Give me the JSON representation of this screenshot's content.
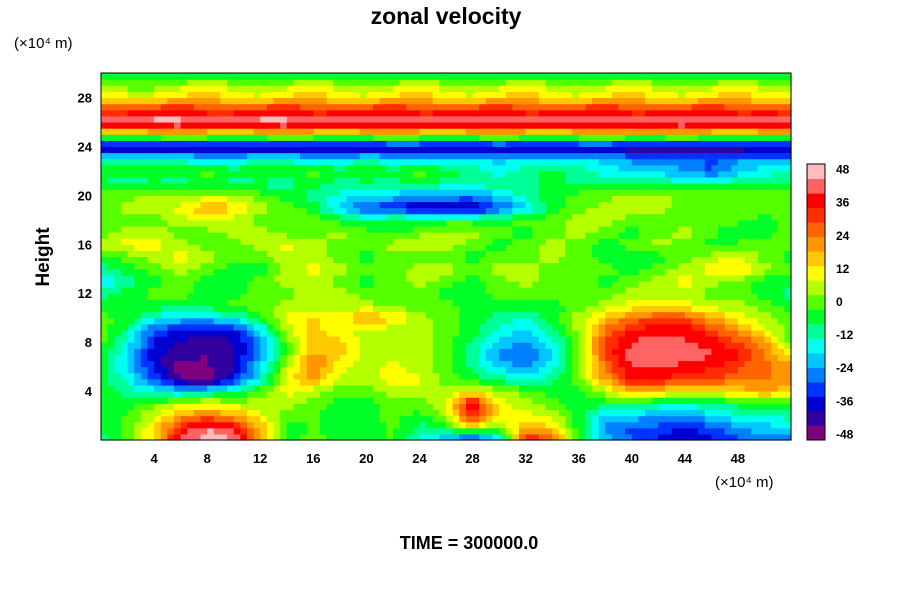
{
  "chart_data": {
    "type": "heatmap",
    "title": "zonal velocity",
    "xlabel": "",
    "ylabel": "Height",
    "x_unit": "(×10⁴ m)",
    "y_unit": "(×10⁴ m)",
    "footer": "TIME = 300000.0",
    "xlim": [
      0,
      52
    ],
    "ylim": [
      0,
      30
    ],
    "x_ticks": [
      4,
      8,
      12,
      16,
      20,
      24,
      28,
      32,
      36,
      40,
      44,
      48
    ],
    "y_ticks": [
      4,
      8,
      12,
      16,
      20,
      24,
      28
    ],
    "colorbar": {
      "range": [
        -50,
        50
      ],
      "ticks": [
        48,
        36,
        24,
        12,
        0,
        -12,
        -24,
        -36,
        -48
      ],
      "colors": [
        "#80007f",
        "#3300a0",
        "#0000d2",
        "#0033ff",
        "#0080ff",
        "#00c8ff",
        "#00ffee",
        "#00ff96",
        "#00ff28",
        "#55ff00",
        "#b4ff00",
        "#ffff00",
        "#ffc800",
        "#ff9600",
        "#ff6400",
        "#ff2d00",
        "#ff0000",
        "#ff6464",
        "#ffbcbc"
      ]
    },
    "x": [
      0,
      2,
      4,
      6,
      8,
      10,
      12,
      14,
      16,
      18,
      20,
      22,
      24,
      26,
      28,
      30,
      32,
      34,
      36,
      38,
      40,
      42,
      44,
      46,
      48,
      50,
      52
    ],
    "y": [
      0,
      1,
      2,
      3,
      4,
      5,
      6,
      7,
      8,
      9,
      10,
      11,
      12,
      13,
      14,
      15,
      16,
      17,
      18,
      19,
      20,
      21,
      22,
      23,
      24,
      25,
      26,
      27,
      28,
      29,
      30
    ],
    "z": [
      [
        -10,
        0,
        15,
        40,
        48,
        45,
        20,
        -5,
        0,
        -5,
        -5,
        -2,
        -15,
        -25,
        -40,
        -20,
        35,
        30,
        -5,
        -20,
        -30,
        -35,
        -40,
        -35,
        -30,
        -25,
        -25
      ],
      [
        -8,
        0,
        12,
        35,
        45,
        40,
        18,
        -5,
        -2,
        -5,
        -5,
        -2,
        -10,
        -5,
        10,
        0,
        20,
        15,
        -5,
        -25,
        -30,
        -30,
        -35,
        -30,
        -25,
        -20,
        -20
      ],
      [
        -5,
        -2,
        8,
        20,
        25,
        20,
        10,
        0,
        -2,
        -5,
        -5,
        0,
        -5,
        5,
        35,
        10,
        10,
        5,
        -5,
        -20,
        -20,
        -25,
        -25,
        -20,
        -15,
        -15,
        -10
      ],
      [
        -5,
        -5,
        0,
        5,
        10,
        5,
        5,
        5,
        0,
        -5,
        -5,
        0,
        0,
        10,
        40,
        10,
        5,
        0,
        -5,
        -5,
        -5,
        -10,
        -10,
        -10,
        -5,
        -5,
        -5
      ],
      [
        -5,
        -10,
        -15,
        -20,
        -15,
        -10,
        0,
        10,
        5,
        0,
        0,
        5,
        5,
        5,
        10,
        5,
        0,
        -5,
        -5,
        5,
        20,
        15,
        10,
        10,
        15,
        20,
        15
      ],
      [
        -5,
        -15,
        -30,
        -45,
        -50,
        -35,
        -15,
        10,
        20,
        5,
        5,
        10,
        10,
        0,
        -5,
        -10,
        -15,
        -10,
        0,
        20,
        35,
        35,
        30,
        30,
        25,
        25,
        20
      ],
      [
        -5,
        -20,
        -35,
        -48,
        -45,
        -40,
        -20,
        5,
        25,
        10,
        5,
        10,
        5,
        0,
        -10,
        -20,
        -25,
        -15,
        0,
        25,
        40,
        40,
        38,
        35,
        30,
        25,
        20
      ],
      [
        -5,
        -20,
        -38,
        -42,
        -45,
        -40,
        -25,
        0,
        20,
        15,
        5,
        5,
        5,
        0,
        -10,
        -25,
        -30,
        -20,
        0,
        30,
        42,
        45,
        42,
        40,
        35,
        25,
        10
      ],
      [
        0,
        -15,
        -35,
        -40,
        -42,
        -40,
        -25,
        0,
        15,
        15,
        5,
        5,
        5,
        0,
        -10,
        -20,
        -25,
        -15,
        0,
        30,
        40,
        42,
        40,
        38,
        30,
        20,
        0
      ],
      [
        0,
        -10,
        -30,
        -35,
        -38,
        -35,
        -20,
        5,
        15,
        10,
        5,
        5,
        5,
        0,
        -5,
        -15,
        -20,
        -10,
        5,
        25,
        35,
        38,
        38,
        30,
        20,
        10,
        0
      ],
      [
        0,
        -5,
        -15,
        -20,
        -20,
        -15,
        -5,
        10,
        15,
        10,
        20,
        15,
        5,
        0,
        -5,
        -10,
        -15,
        -5,
        5,
        15,
        25,
        30,
        28,
        20,
        10,
        5,
        0
      ],
      [
        -5,
        -5,
        -5,
        -5,
        -5,
        0,
        0,
        5,
        5,
        5,
        5,
        0,
        0,
        0,
        -5,
        -5,
        -5,
        -5,
        0,
        5,
        10,
        10,
        10,
        5,
        5,
        0,
        -5
      ],
      [
        -10,
        -5,
        0,
        0,
        -5,
        -5,
        0,
        0,
        5,
        5,
        0,
        0,
        0,
        -5,
        -5,
        0,
        0,
        0,
        0,
        0,
        5,
        5,
        5,
        0,
        0,
        -5,
        -10
      ],
      [
        -20,
        -10,
        -5,
        0,
        -5,
        -5,
        0,
        5,
        5,
        0,
        -5,
        0,
        5,
        0,
        -5,
        0,
        5,
        0,
        0,
        -5,
        0,
        5,
        10,
        5,
        0,
        -5,
        -5
      ],
      [
        -10,
        -5,
        0,
        5,
        0,
        -5,
        -5,
        5,
        10,
        5,
        0,
        0,
        5,
        5,
        0,
        5,
        5,
        0,
        0,
        0,
        -5,
        0,
        5,
        10,
        15,
        5,
        0
      ],
      [
        -5,
        0,
        5,
        10,
        5,
        0,
        0,
        5,
        5,
        0,
        -5,
        0,
        0,
        0,
        -5,
        0,
        0,
        5,
        0,
        -5,
        -5,
        -5,
        0,
        5,
        10,
        0,
        -5
      ],
      [
        5,
        10,
        10,
        5,
        0,
        0,
        5,
        10,
        5,
        0,
        0,
        5,
        10,
        5,
        0,
        -5,
        0,
        5,
        0,
        -5,
        0,
        5,
        0,
        -5,
        0,
        0,
        0
      ],
      [
        0,
        5,
        5,
        0,
        0,
        5,
        5,
        0,
        0,
        5,
        0,
        -5,
        0,
        5,
        5,
        0,
        -5,
        0,
        5,
        0,
        -5,
        0,
        5,
        0,
        -10,
        -5,
        0
      ],
      [
        0,
        0,
        0,
        5,
        10,
        5,
        0,
        0,
        0,
        -5,
        -10,
        -5,
        -5,
        -5,
        -5,
        -5,
        0,
        0,
        5,
        5,
        0,
        0,
        0,
        0,
        0,
        -5,
        0
      ],
      [
        0,
        5,
        5,
        10,
        20,
        15,
        5,
        0,
        -5,
        -20,
        -30,
        -35,
        -40,
        -40,
        -42,
        -30,
        -20,
        -5,
        0,
        5,
        5,
        5,
        0,
        0,
        0,
        0,
        0
      ],
      [
        0,
        0,
        5,
        0,
        5,
        5,
        0,
        -5,
        -10,
        -15,
        -20,
        -20,
        -25,
        -25,
        -25,
        -20,
        -10,
        -5,
        0,
        0,
        5,
        5,
        0,
        0,
        0,
        0,
        0
      ],
      [
        -10,
        -10,
        -10,
        -10,
        -5,
        -10,
        -10,
        -10,
        -5,
        -10,
        -10,
        -10,
        -5,
        -10,
        -10,
        -10,
        -10,
        -5,
        -10,
        -10,
        -10,
        -10,
        -10,
        -10,
        -10,
        -10,
        -10
      ],
      [
        0,
        -5,
        0,
        -5,
        0,
        -5,
        0,
        -5,
        0,
        -5,
        0,
        -5,
        0,
        -5,
        -10,
        -15,
        -10,
        -5,
        -10,
        -15,
        -20,
        -20,
        -25,
        -30,
        -20,
        -15,
        -10
      ],
      [
        -15,
        -15,
        -15,
        -15,
        -20,
        -20,
        -15,
        -15,
        -20,
        -20,
        -15,
        -20,
        -20,
        -20,
        -20,
        -20,
        -20,
        -20,
        -20,
        -20,
        -25,
        -25,
        -25,
        -30,
        -25,
        -25,
        -25
      ],
      [
        -42,
        -42,
        -45,
        -45,
        -42,
        -42,
        -45,
        -45,
        -42,
        -45,
        -45,
        -42,
        -42,
        -45,
        -45,
        -42,
        -45,
        -45,
        -42,
        -42,
        -45,
        -45,
        -48,
        -48,
        -45,
        -42,
        -42
      ],
      [
        10,
        5,
        10,
        15,
        10,
        5,
        10,
        15,
        10,
        5,
        10,
        15,
        10,
        5,
        10,
        15,
        10,
        5,
        10,
        15,
        10,
        10,
        15,
        10,
        5,
        10,
        10
      ],
      [
        45,
        45,
        48,
        48,
        45,
        45,
        48,
        48,
        45,
        48,
        48,
        45,
        45,
        48,
        48,
        45,
        45,
        48,
        48,
        45,
        45,
        48,
        48,
        45,
        45,
        48,
        45
      ],
      [
        30,
        30,
        35,
        35,
        30,
        30,
        35,
        35,
        30,
        30,
        35,
        35,
        30,
        30,
        35,
        35,
        30,
        30,
        35,
        35,
        30,
        30,
        35,
        35,
        30,
        30,
        30
      ],
      [
        15,
        10,
        10,
        15,
        20,
        10,
        10,
        15,
        20,
        10,
        10,
        15,
        20,
        10,
        10,
        15,
        20,
        10,
        10,
        15,
        20,
        10,
        10,
        15,
        20,
        10,
        10
      ],
      [
        5,
        0,
        0,
        5,
        10,
        5,
        0,
        5,
        10,
        5,
        0,
        5,
        10,
        5,
        0,
        5,
        10,
        5,
        0,
        5,
        10,
        5,
        0,
        5,
        10,
        5,
        5
      ],
      [
        -10,
        -10,
        -10,
        -10,
        -10,
        -10,
        -10,
        -10,
        -10,
        -10,
        -10,
        -10,
        -10,
        -10,
        -10,
        -10,
        -10,
        -10,
        -10,
        -10,
        -10,
        -10,
        -10,
        -10,
        -10,
        -10,
        -10
      ]
    ]
  }
}
